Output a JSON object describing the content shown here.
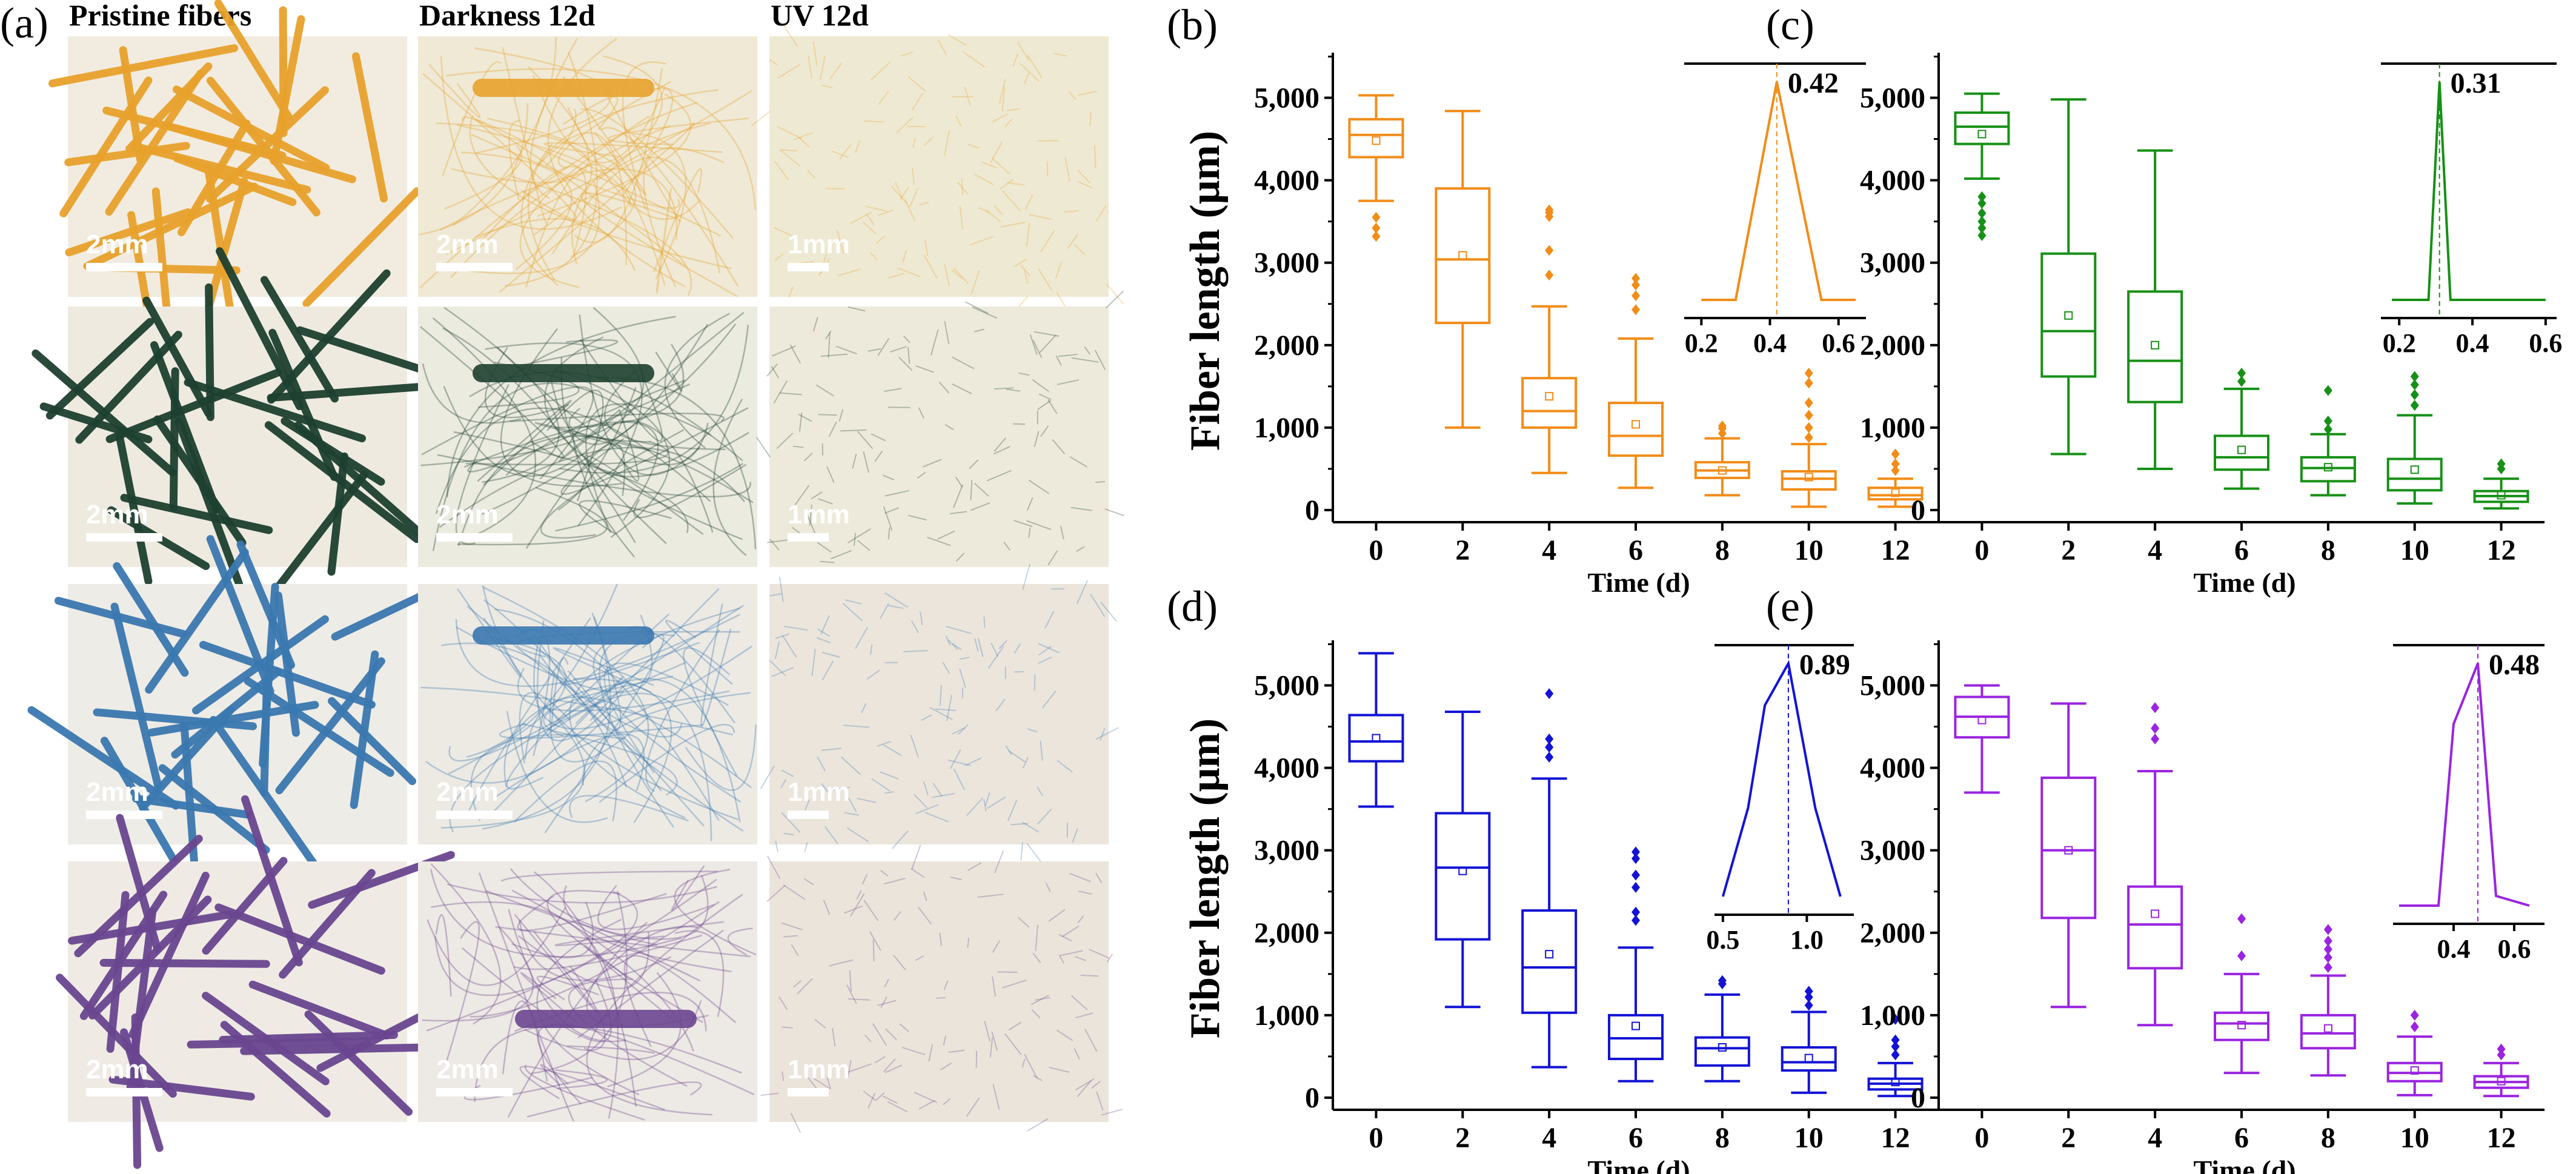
{
  "panel_a": {
    "label": "(a)",
    "columns": [
      "Pristine fibers",
      "Darkness 12d",
      "UV 12d"
    ],
    "rows": [
      {
        "color": "#e8a22c",
        "bg": [
          "#f2ece0",
          "#efe9d6",
          "#eee9d2"
        ],
        "scale_labels": [
          "2mm",
          "2mm",
          "1mm"
        ]
      },
      {
        "color": "#1e4030",
        "bg": [
          "#eeeae0",
          "#ecebe0",
          "#eeeadb"
        ],
        "scale_labels": [
          "2mm",
          "2mm",
          "1mm"
        ]
      },
      {
        "color": "#3a78b0",
        "bg": [
          "#eeece6",
          "#edeae4",
          "#ebe5dc"
        ],
        "scale_labels": [
          "2mm",
          "2mm",
          "1mm"
        ]
      },
      {
        "color": "#6a4690",
        "bg": [
          "#efebe4",
          "#ede9e4",
          "#ebe4da"
        ],
        "scale_labels": [
          "2mm",
          "2mm",
          "1mm"
        ]
      }
    ]
  },
  "chart_data": [
    {
      "panel": "(b)",
      "type": "box",
      "color": "#f28c18",
      "title": "",
      "xlabel": "Time (d)",
      "ylabel": "Fiber length (μm)",
      "ylim": [
        0,
        5400
      ],
      "x": [
        "0",
        "2",
        "4",
        "6",
        "8",
        "10",
        "12"
      ],
      "yticks": [
        "0",
        "1,000",
        "2,000",
        "3,000",
        "4,000",
        "5,000"
      ],
      "boxes": [
        {
          "whislo": 3750,
          "q1": 4280,
          "med": 4550,
          "q3": 4740,
          "whishi": 5030,
          "mean": 4480,
          "fliers": [
            3550,
            3420,
            3320
          ]
        },
        {
          "whislo": 1000,
          "q1": 2270,
          "med": 3040,
          "q3": 3900,
          "whishi": 4840,
          "mean": 3090,
          "fliers": []
        },
        {
          "whislo": 450,
          "q1": 1000,
          "med": 1200,
          "q3": 1600,
          "whishi": 2470,
          "mean": 1380,
          "fliers": [
            2850,
            3150,
            3560,
            3610,
            3640
          ]
        },
        {
          "whislo": 270,
          "q1": 660,
          "med": 900,
          "q3": 1300,
          "whishi": 2080,
          "mean": 1040,
          "fliers": [
            2430,
            2600,
            2730,
            2810
          ]
        },
        {
          "whislo": 180,
          "q1": 390,
          "med": 480,
          "q3": 580,
          "whishi": 870,
          "mean": 480,
          "fliers": [
            930,
            990,
            1020
          ]
        },
        {
          "whislo": 40,
          "q1": 250,
          "med": 380,
          "q3": 470,
          "whishi": 800,
          "mean": 400,
          "fliers": [
            880,
            1000,
            1150,
            1300,
            1540,
            1660
          ]
        },
        {
          "whislo": 40,
          "q1": 130,
          "med": 180,
          "q3": 270,
          "whishi": 380,
          "mean": 210,
          "fliers": [
            480,
            560,
            680
          ]
        }
      ],
      "inset": {
        "xlim": [
          0.15,
          0.68
        ],
        "xticks": [
          "0.2",
          "0.4",
          "0.6"
        ],
        "x": [
          0.2,
          0.3,
          0.42,
          0.55,
          0.65
        ],
        "y": [
          0.0,
          0.0,
          1.0,
          0.0,
          0.0
        ],
        "peak": 0.42,
        "label": "0.42"
      }
    },
    {
      "panel": "(c)",
      "type": "box",
      "color": "#169016",
      "title": "",
      "xlabel": "Time (d)",
      "ylabel": "",
      "ylim": [
        0,
        5400
      ],
      "x": [
        "0",
        "2",
        "4",
        "6",
        "8",
        "10",
        "12"
      ],
      "yticks": [
        "0",
        "1,000",
        "2,000",
        "3,000",
        "4,000",
        "5,000"
      ],
      "boxes": [
        {
          "whislo": 4020,
          "q1": 4440,
          "med": 4650,
          "q3": 4820,
          "whishi": 5050,
          "mean": 4560,
          "fliers": [
            3800,
            3720,
            3600,
            3500,
            3420,
            3330
          ]
        },
        {
          "whislo": 680,
          "q1": 1620,
          "med": 2170,
          "q3": 3110,
          "whishi": 4980,
          "mean": 2360,
          "fliers": []
        },
        {
          "whislo": 500,
          "q1": 1310,
          "med": 1810,
          "q3": 2650,
          "whishi": 4360,
          "mean": 2000,
          "fliers": []
        },
        {
          "whislo": 260,
          "q1": 490,
          "med": 640,
          "q3": 900,
          "whishi": 1470,
          "mean": 730,
          "fliers": [
            1560,
            1660
          ]
        },
        {
          "whislo": 180,
          "q1": 350,
          "med": 510,
          "q3": 640,
          "whishi": 920,
          "mean": 520,
          "fliers": [
            980,
            1080,
            1450
          ]
        },
        {
          "whislo": 80,
          "q1": 240,
          "med": 380,
          "q3": 620,
          "whishi": 1150,
          "mean": 490,
          "fliers": [
            1270,
            1400,
            1520,
            1620
          ]
        },
        {
          "whislo": 20,
          "q1": 100,
          "med": 170,
          "q3": 230,
          "whishi": 380,
          "mean": 180,
          "fliers": [
            500,
            560
          ]
        }
      ],
      "inset": {
        "xlim": [
          0.15,
          0.63
        ],
        "xticks": [
          "0.2",
          "0.4",
          "0.6"
        ],
        "x": [
          0.18,
          0.28,
          0.31,
          0.34,
          0.6
        ],
        "y": [
          0.0,
          0.0,
          1.0,
          0.0,
          0.0
        ],
        "peak": 0.31,
        "label": "0.31"
      }
    },
    {
      "panel": "(d)",
      "type": "box",
      "color": "#1313d6",
      "title": "",
      "xlabel": "Time (d)",
      "ylabel": "Fiber length (μm)",
      "ylim": [
        0,
        5400
      ],
      "x": [
        "0",
        "2",
        "4",
        "6",
        "8",
        "10",
        "12"
      ],
      "yticks": [
        "0",
        "1,000",
        "2,000",
        "3,000",
        "4,000",
        "5,000"
      ],
      "boxes": [
        {
          "whislo": 3530,
          "q1": 4080,
          "med": 4320,
          "q3": 4640,
          "whishi": 5390,
          "mean": 4360,
          "fliers": []
        },
        {
          "whislo": 1100,
          "q1": 1920,
          "med": 2790,
          "q3": 3450,
          "whishi": 4680,
          "mean": 2750,
          "fliers": []
        },
        {
          "whislo": 370,
          "q1": 1030,
          "med": 1580,
          "q3": 2270,
          "whishi": 3870,
          "mean": 1740,
          "fliers": [
            4130,
            4250,
            4350,
            4900
          ]
        },
        {
          "whislo": 200,
          "q1": 470,
          "med": 720,
          "q3": 1000,
          "whishi": 1820,
          "mean": 870,
          "fliers": [
            2150,
            2250,
            2550,
            2700,
            2900,
            2980
          ]
        },
        {
          "whislo": 200,
          "q1": 390,
          "med": 600,
          "q3": 730,
          "whishi": 1250,
          "mean": 610,
          "fliers": [
            1380,
            1420
          ]
        },
        {
          "whislo": 60,
          "q1": 330,
          "med": 430,
          "q3": 610,
          "whishi": 1040,
          "mean": 480,
          "fliers": [
            1120,
            1220,
            1290
          ]
        },
        {
          "whislo": 20,
          "q1": 100,
          "med": 170,
          "q3": 230,
          "whishi": 420,
          "mean": 190,
          "fliers": [
            520,
            620,
            700,
            950
          ]
        }
      ],
      "inset": {
        "xlim": [
          0.45,
          1.28
        ],
        "xticks": [
          "0.5",
          "1.0"
        ],
        "x": [
          0.5,
          0.65,
          0.75,
          0.89,
          1.05,
          1.2
        ],
        "y": [
          0.0,
          0.38,
          0.82,
          1.0,
          0.38,
          0.0
        ],
        "peak": 0.89,
        "label": "0.89"
      }
    },
    {
      "panel": "(e)",
      "type": "box",
      "color": "#9a24e0",
      "title": "",
      "xlabel": "Time (d)",
      "ylabel": "",
      "ylim": [
        0,
        5400
      ],
      "x": [
        "0",
        "2",
        "4",
        "6",
        "8",
        "10",
        "12"
      ],
      "yticks": [
        "0",
        "1,000",
        "2,000",
        "3,000",
        "4,000",
        "5,000"
      ],
      "boxes": [
        {
          "whislo": 3700,
          "q1": 4370,
          "med": 4620,
          "q3": 4860,
          "whishi": 5000,
          "mean": 4580,
          "fliers": []
        },
        {
          "whislo": 1100,
          "q1": 2180,
          "med": 3000,
          "q3": 3880,
          "whishi": 4780,
          "mean": 3000,
          "fliers": []
        },
        {
          "whislo": 880,
          "q1": 1570,
          "med": 2100,
          "q3": 2560,
          "whishi": 3960,
          "mean": 2230,
          "fliers": [
            4350,
            4480,
            4730
          ]
        },
        {
          "whislo": 300,
          "q1": 700,
          "med": 900,
          "q3": 1030,
          "whishi": 1500,
          "mean": 880,
          "fliers": [
            1720,
            2170
          ]
        },
        {
          "whislo": 270,
          "q1": 600,
          "med": 780,
          "q3": 1000,
          "whishi": 1480,
          "mean": 840,
          "fliers": [
            1580,
            1700,
            1800,
            1900,
            2040
          ]
        },
        {
          "whislo": 30,
          "q1": 200,
          "med": 300,
          "q3": 420,
          "whishi": 740,
          "mean": 330,
          "fliers": [
            860,
            1000
          ]
        },
        {
          "whislo": 20,
          "q1": 120,
          "med": 190,
          "q3": 260,
          "whishi": 420,
          "mean": 200,
          "fliers": [
            520,
            590
          ]
        }
      ],
      "inset": {
        "xlim": [
          0.2,
          0.7
        ],
        "xticks": [
          "0.4",
          "0.6"
        ],
        "x": [
          0.22,
          0.35,
          0.4,
          0.48,
          0.54,
          0.65
        ],
        "y": [
          0.0,
          0.0,
          0.75,
          1.0,
          0.04,
          0.0
        ],
        "peak": 0.48,
        "label": "0.48"
      }
    }
  ]
}
